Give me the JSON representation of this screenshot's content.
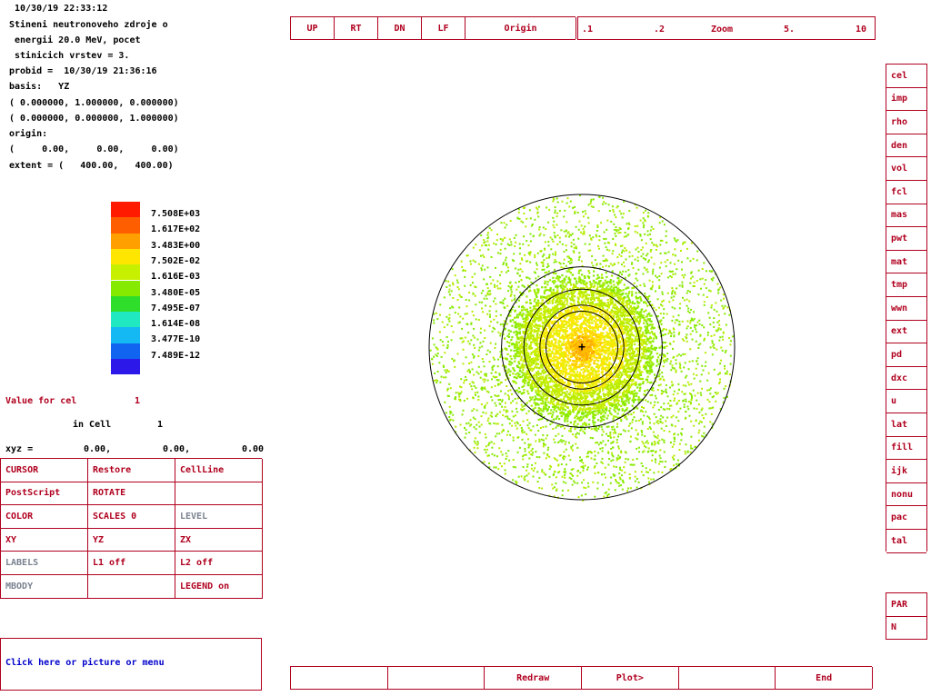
{
  "header": {
    "timestamp": "10/30/19 22:33:12",
    "title_lines": [
      "Stineni neutronoveho zdroje o",
      " energii 20.0 MeV, pocet",
      " stinicich vrstev = 3."
    ],
    "probid": "probid =  10/30/19 21:36:16",
    "basis": "basis:   YZ",
    "basis_v1": "( 0.000000, 1.000000, 0.000000)",
    "basis_v2": "( 0.000000, 0.000000, 1.000000)",
    "origin_label": "origin:",
    "origin_values": "(     0.00,     0.00,     0.00)",
    "extent": "extent = (   400.00,   400.00)"
  },
  "legend": {
    "colors": [
      "#ff1a00",
      "#ff5e00",
      "#ffa000",
      "#ffe600",
      "#c6f000",
      "#86ea00",
      "#2ede2a",
      "#20e8c0",
      "#14b8f2",
      "#1064f0",
      "#2c18e8"
    ],
    "labels": [
      "7.508E+03",
      "1.617E+02",
      "3.483E+00",
      "7.502E-02",
      "1.616E-03",
      "3.480E-05",
      "7.495E-07",
      "1.614E-08",
      "3.477E-10",
      "7.489E-12"
    ]
  },
  "value_panel": {
    "value_for_label": "Value for cel",
    "value_for_num": "1",
    "in_cell_label": "in Cell",
    "in_cell_num": "1",
    "xyz_label": "xyz =",
    "xyz_1": "0.00,",
    "xyz_2": "0.00,",
    "xyz_3": "0.00"
  },
  "control_grid": [
    [
      "CURSOR",
      "Restore",
      "CellLine"
    ],
    [
      "PostScript",
      "ROTATE",
      ""
    ],
    [
      "COLOR",
      "SCALES 0",
      "LEVEL"
    ],
    [
      "XY",
      "YZ",
      "ZX"
    ],
    [
      "LABELS",
      "L1 off",
      "L2 off"
    ],
    [
      "MBODY",
      "",
      "LEGEND  on"
    ]
  ],
  "status_message": "Click here or picture or menu",
  "top_nav": [
    "UP",
    "RT",
    "DN",
    "LF",
    "Origin"
  ],
  "zoom": {
    "label": "Zoom",
    "ticks": [
      ".1",
      ".2",
      "5.",
      "10"
    ]
  },
  "right_menu": [
    "cel",
    "imp",
    "rho",
    "den",
    "vol",
    "fcl",
    "mas",
    "pwt",
    "mat",
    "tmp",
    "wwn",
    "ext",
    "pd",
    "dxc",
    "u",
    "lat",
    "fill",
    "ijk",
    "nonu",
    "pac",
    "tal"
  ],
  "right_menu_2": [
    "PAR",
    "N"
  ],
  "bottom_bar": [
    "",
    "",
    "Redraw",
    "Plot>",
    "",
    "End"
  ],
  "plot": {
    "circles_radius_fraction": [
      1.0,
      0.526,
      0.38,
      0.275,
      0.235
    ],
    "cursor_symbol": "+"
  }
}
